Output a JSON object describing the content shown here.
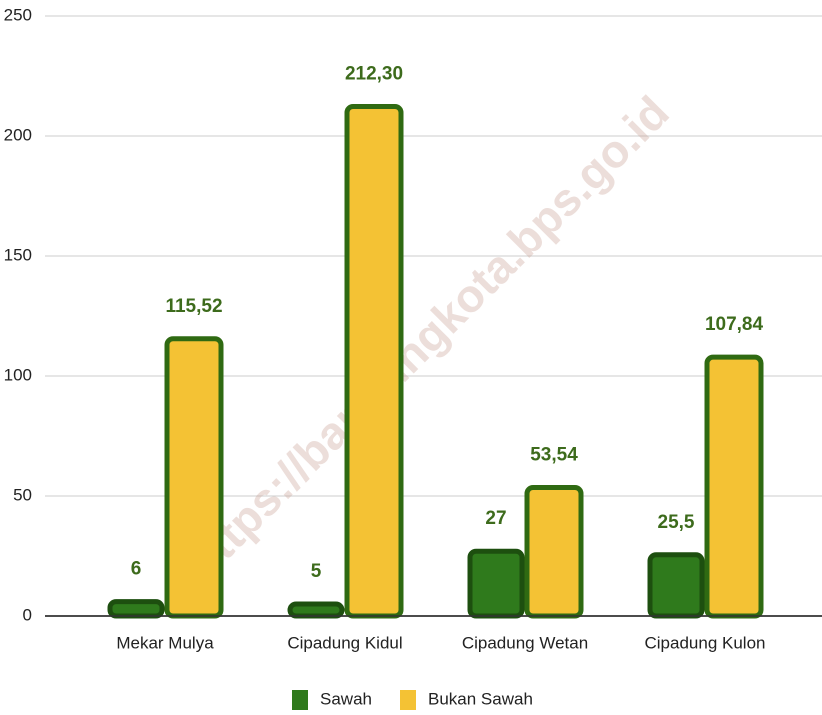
{
  "chart_data": {
    "type": "bar",
    "categories": [
      "Mekar Mulya",
      "Cipadung Kidul",
      "Cipadung Wetan",
      "Cipadung Kulon"
    ],
    "series": [
      {
        "name": "Sawah",
        "color": "#2f7a1c",
        "border": "#1d4f0f",
        "values": [
          6,
          5,
          27,
          25.5
        ],
        "value_labels": [
          "6",
          "5",
          "27",
          "25,5"
        ]
      },
      {
        "name": "Bukan Sawah",
        "color": "#f4c234",
        "border": "#2f6a12",
        "values": [
          115.52,
          212.3,
          53.54,
          107.84
        ],
        "value_labels": [
          "115,52",
          "212,30",
          "53,54",
          "107,84"
        ]
      }
    ],
    "ylim": [
      0,
      250
    ],
    "yticks": [
      0,
      50,
      100,
      150,
      200,
      250
    ],
    "grid": true,
    "legend": "bottom",
    "watermark": "https://bandungkota.bps.go.id"
  }
}
